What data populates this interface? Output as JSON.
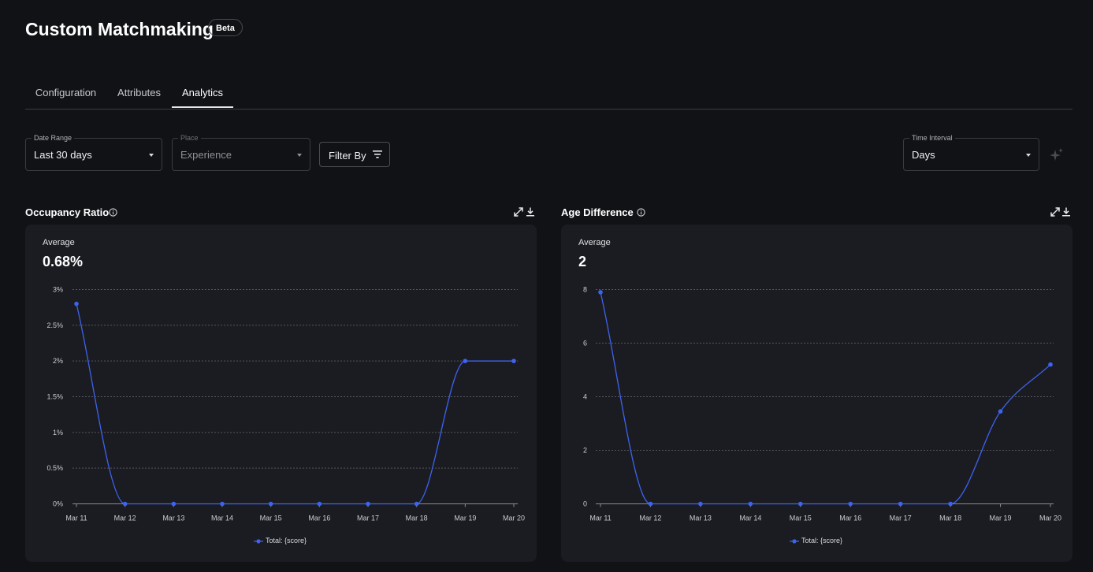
{
  "header": {
    "title": "Custom Matchmaking",
    "badge": "Beta"
  },
  "tabs": [
    {
      "label": "Configuration",
      "active": false
    },
    {
      "label": "Attributes",
      "active": false
    },
    {
      "label": "Analytics",
      "active": true
    }
  ],
  "filters": {
    "date_range": {
      "label": "Date Range",
      "value": "Last 30 days"
    },
    "place": {
      "label": "Place",
      "placeholder": "Experience"
    },
    "filter_by": "Filter By",
    "time_interval": {
      "label": "Time Interval",
      "value": "Days"
    }
  },
  "colors": {
    "accent": "#3d63f0",
    "panel": "#1b1c21",
    "background": "#111216"
  },
  "icons": {
    "filter": "filter-icon",
    "sparkle": "sparkle-icon",
    "info": "info-icon",
    "expand": "expand-icon",
    "download": "download-icon",
    "dropdown": "chevron-down-icon"
  },
  "charts": [
    {
      "title": "Occupancy Ratio",
      "average_label": "Average",
      "average_value": "0.68%",
      "legend": "Total: {score}"
    },
    {
      "title": "Age Difference",
      "average_label": "Average",
      "average_value": "2",
      "legend": "Total: {score}"
    }
  ],
  "chart_data": [
    {
      "type": "line",
      "title": "Occupancy Ratio",
      "categories": [
        "Mar 11",
        "Mar 12",
        "Mar 13",
        "Mar 14",
        "Mar 15",
        "Mar 16",
        "Mar 17",
        "Mar 18",
        "Mar 19",
        "Mar 20"
      ],
      "series": [
        {
          "name": "Total: {score}",
          "values": [
            2.8,
            0,
            0,
            0,
            0,
            0,
            0,
            0,
            2,
            2
          ]
        }
      ],
      "ylim": [
        0,
        3
      ],
      "yticks": [
        "0%",
        "0.5%",
        "1%",
        "1.5%",
        "2%",
        "2.5%",
        "3%"
      ],
      "grid": true,
      "legend": "bottom-center"
    },
    {
      "type": "line",
      "title": "Age Difference",
      "categories": [
        "Mar 11",
        "Mar 12",
        "Mar 13",
        "Mar 14",
        "Mar 15",
        "Mar 16",
        "Mar 17",
        "Mar 18",
        "Mar 19",
        "Mar 20"
      ],
      "series": [
        {
          "name": "Total: {score}",
          "values": [
            7.9,
            0,
            0,
            0,
            0,
            0,
            0,
            0,
            3.45,
            5.2
          ]
        }
      ],
      "ylim": [
        0,
        8
      ],
      "yticks": [
        "0",
        "2",
        "4",
        "6",
        "8"
      ],
      "grid": true,
      "legend": "bottom-center"
    }
  ]
}
